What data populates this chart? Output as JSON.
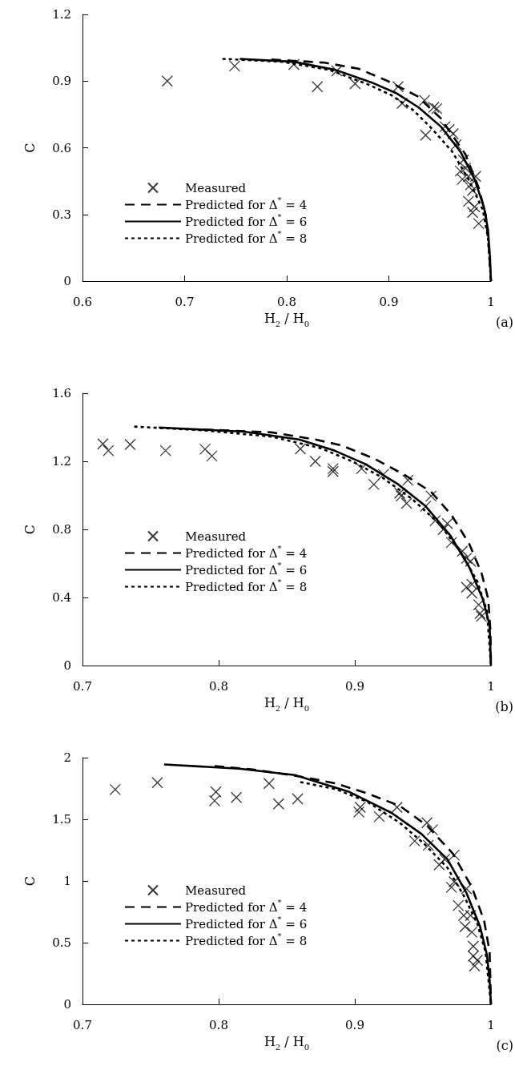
{
  "chart_data": [
    {
      "type": "scatter",
      "xlabel": "H$_{2}$ / H$_{0}$",
      "ylabel": "C",
      "annotations": [
        "(a)"
      ],
      "xlim": [
        0.6,
        1
      ],
      "xticks": [
        0.6,
        0.7,
        0.8,
        0.9,
        1
      ],
      "ylim": [
        0,
        1.2
      ],
      "yticks": [
        0,
        0.3,
        0.6,
        0.9,
        1.2
      ],
      "legend": "bottom left",
      "series": [
        {
          "name": "Measured",
          "type": "scatter",
          "marker": "cross",
          "color": "#000000",
          "x": [
            0.683,
            0.749,
            0.807,
            0.83,
            0.849,
            0.867,
            0.909,
            0.913,
            0.935,
            0.944,
            0.947,
            0.936,
            0.955,
            0.959,
            0.963,
            0.966,
            0.973,
            0.975,
            0.985,
            0.978,
            0.98,
            0.982,
            0.978,
            0.984,
            0.982,
            0.988,
            0.97,
            0.972
          ],
          "values": [
            0.9,
            0.968,
            0.975,
            0.875,
            0.946,
            0.888,
            0.875,
            0.8,
            0.813,
            0.782,
            0.776,
            0.657,
            0.695,
            0.682,
            0.663,
            0.614,
            0.545,
            0.508,
            0.471,
            0.471,
            0.433,
            0.408,
            0.359,
            0.334,
            0.309,
            0.259,
            0.495,
            0.458
          ]
        },
        {
          "name": "Predicted for Δ$^{*}$ = 4",
          "type": "line",
          "marker": "none",
          "line_style": "dashed",
          "color": "#000000",
          "x": [
            0.785,
            0.837,
            0.87,
            0.899,
            0.928,
            0.951,
            0.975,
            0.988,
            0.995,
            0.998,
            1
          ],
          "values": [
            0.997,
            0.983,
            0.956,
            0.9,
            0.832,
            0.732,
            0.57,
            0.42,
            0.296,
            0.147,
            0
          ]
        },
        {
          "name": "Predicted for Δ$^{*}$ = 6",
          "type": "line",
          "marker": "none",
          "line_style": "solid",
          "color": "#000000",
          "x": [
            0.754,
            0.807,
            0.848,
            0.883,
            0.908,
            0.929,
            0.951,
            0.97,
            0.984,
            0.993,
            0.997,
            0.999,
            1
          ],
          "values": [
            1.0,
            0.987,
            0.95,
            0.894,
            0.844,
            0.782,
            0.695,
            0.583,
            0.458,
            0.334,
            0.234,
            0.11,
            0
          ]
        },
        {
          "name": "Predicted for Δ$^{*}$ = 8",
          "type": "line",
          "marker": "none",
          "line_style": "dotted",
          "color": "#000000",
          "x": [
            0.737,
            0.796,
            0.842,
            0.878,
            0.902,
            0.924,
            0.943,
            0.962,
            0.978,
            0.992,
            0.997,
            1
          ],
          "values": [
            1.0,
            0.987,
            0.95,
            0.888,
            0.838,
            0.769,
            0.682,
            0.583,
            0.458,
            0.321,
            0.197,
            0
          ]
        }
      ]
    },
    {
      "type": "scatter",
      "xlabel": "H$_{2}$ / H$_{0}$",
      "ylabel": "C",
      "annotations": [
        "(b)"
      ],
      "xlim": [
        0.7,
        1
      ],
      "xticks": [
        0.7,
        0.8,
        0.9,
        1
      ],
      "ylim": [
        0,
        1.6
      ],
      "yticks": [
        0,
        0.4,
        0.8,
        1.2,
        1.6
      ],
      "legend": "bottom left",
      "series": [
        {
          "name": "Measured",
          "type": "scatter",
          "marker": "cross",
          "color": "#000000",
          "x": [
            0.715,
            0.719,
            0.735,
            0.761,
            0.79,
            0.795,
            0.86,
            0.871,
            0.884,
            0.884,
            0.905,
            0.914,
            0.921,
            0.933,
            0.934,
            0.938,
            0.939,
            0.952,
            0.956,
            0.965,
            0.968,
            0.971,
            0.979,
            0.982,
            0.985,
            0.982,
            0.986,
            0.986,
            0.991,
            0.992,
            0.993,
            0.959
          ],
          "values": [
            1.302,
            1.263,
            1.299,
            1.263,
            1.271,
            1.231,
            1.273,
            1.2,
            1.157,
            1.14,
            1.157,
            1.064,
            1.123,
            1.013,
            0.996,
            0.953,
            1.089,
            0.936,
            0.996,
            0.8,
            0.834,
            0.723,
            0.672,
            0.63,
            0.613,
            0.46,
            0.477,
            0.426,
            0.357,
            0.306,
            0.289,
            0.851
          ]
        },
        {
          "name": "Predicted for Δ$^{*}$ = 4",
          "type": "line",
          "marker": "none",
          "line_style": "dashed",
          "color": "#000000",
          "x": [
            0.789,
            0.839,
            0.871,
            0.89,
            0.914,
            0.936,
            0.956,
            0.971,
            0.984,
            0.993,
            0.998,
            0.9996,
            1
          ],
          "values": [
            1.387,
            1.37,
            1.328,
            1.294,
            1.217,
            1.123,
            1.021,
            0.885,
            0.715,
            0.545,
            0.391,
            0.204,
            0
          ]
        },
        {
          "name": "Predicted for Δ$^{*}$ = 6",
          "type": "line",
          "marker": "none",
          "line_style": "solid",
          "color": "#000000",
          "x": [
            0.756,
            0.819,
            0.859,
            0.885,
            0.908,
            0.932,
            0.952,
            0.97,
            0.984,
            0.994,
            0.999,
            1
          ],
          "values": [
            1.399,
            1.374,
            1.328,
            1.263,
            1.183,
            1.064,
            0.936,
            0.766,
            0.579,
            0.391,
            0.238,
            0
          ]
        },
        {
          "name": "Predicted for Δ$^{*}$ = 8",
          "type": "line",
          "marker": "none",
          "line_style": "dotted",
          "color": "#000000",
          "x": [
            0.738,
            0.789,
            0.839,
            0.875,
            0.898,
            0.92,
            0.942,
            0.962,
            0.978,
            0.99,
            0.997,
            1
          ],
          "values": [
            1.404,
            1.382,
            1.345,
            1.277,
            1.2,
            1.106,
            0.979,
            0.834,
            0.664,
            0.494,
            0.323,
            0
          ]
        }
      ]
    },
    {
      "type": "scatter",
      "xlabel": "H$_{2}$ / H$_{0}$",
      "ylabel": "C",
      "annotations": [
        "(c)"
      ],
      "xlim": [
        0.7,
        1
      ],
      "xticks": [
        0.7,
        0.8,
        0.9,
        1
      ],
      "ylim": [
        0,
        2
      ],
      "yticks": [
        0,
        0.5,
        1,
        1.5,
        2
      ],
      "legend": "bottom left",
      "series": [
        {
          "name": "Measured",
          "type": "scatter",
          "marker": "cross",
          "color": "#000000",
          "x": [
            0.724,
            0.755,
            0.798,
            0.797,
            0.813,
            0.837,
            0.844,
            0.858,
            0.903,
            0.904,
            0.918,
            0.931,
            0.944,
            0.953,
            0.954,
            0.957,
            0.962,
            0.966,
            0.973,
            0.971,
            0.973,
            0.976,
            0.98,
            0.982,
            0.981,
            0.985,
            0.986,
            0.987,
            0.988,
            0.99,
            0.987
          ],
          "values": [
            1.741,
            1.797,
            1.722,
            1.65,
            1.677,
            1.791,
            1.625,
            1.666,
            1.559,
            1.597,
            1.522,
            1.597,
            1.324,
            1.472,
            1.29,
            1.415,
            1.131,
            1.176,
            1.21,
            0.949,
            0.994,
            0.801,
            0.721,
            0.937,
            0.63,
            0.721,
            0.585,
            0.391,
            0.312,
            0.357,
            0.471
          ]
        },
        {
          "name": "Predicted for Δ$^{*}$ = 4",
          "type": "line",
          "marker": "none",
          "line_style": "dashed",
          "color": "#000000",
          "x": [
            0.797,
            0.825,
            0.862,
            0.886,
            0.909,
            0.933,
            0.953,
            0.972,
            0.986,
            0.995,
            0.999,
            1
          ],
          "values": [
            1.932,
            1.904,
            1.843,
            1.791,
            1.711,
            1.609,
            1.449,
            1.222,
            0.949,
            0.676,
            0.425,
            0
          ]
        },
        {
          "name": "Predicted for Δ$^{*}$ = 6",
          "type": "line",
          "marker": "none",
          "line_style": "solid",
          "color": "#000000",
          "x": [
            0.76,
            0.815,
            0.856,
            0.896,
            0.927,
            0.949,
            0.968,
            0.982,
            0.992,
            0.997,
            0.999,
            1
          ],
          "values": [
            1.945,
            1.911,
            1.859,
            1.722,
            1.552,
            1.381,
            1.176,
            0.903,
            0.63,
            0.403,
            0.198,
            0
          ]
        },
        {
          "name": "Predicted for Δ$^{*}$ = 8",
          "type": "line",
          "marker": "none",
          "line_style": "dotted",
          "color": "#000000",
          "x": [
            0.86,
            0.886,
            0.909,
            0.933,
            0.951,
            0.968,
            0.98,
            0.99,
            0.996,
            1
          ],
          "values": [
            1.802,
            1.745,
            1.643,
            1.472,
            1.301,
            1.108,
            0.881,
            0.653,
            0.425,
            0
          ]
        }
      ]
    }
  ]
}
